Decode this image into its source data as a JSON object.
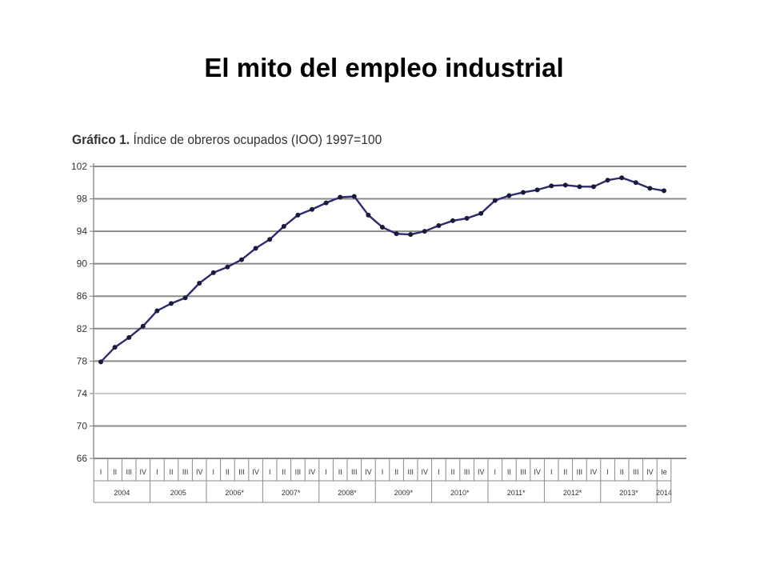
{
  "slide": {
    "title": "El mito del empleo industrial"
  },
  "chart_caption": {
    "label": "Gráfico 1.",
    "text": "Índice de obreros ocupados (IOO) 1997=100"
  },
  "chart_data": {
    "type": "line",
    "title": "Gráfico 1. Índice de obreros ocupados (IOO) 1997=100",
    "xlabel": "",
    "ylabel": "",
    "ylim": [
      66,
      102
    ],
    "yticks": [
      102,
      98,
      94,
      90,
      86,
      82,
      78,
      74,
      70,
      66
    ],
    "grid": true,
    "quarters": [
      "I",
      "II",
      "III",
      "IV",
      "I",
      "II",
      "III",
      "IV",
      "I",
      "II",
      "III",
      "IV",
      "I",
      "II",
      "III",
      "IV",
      "I",
      "II",
      "III",
      "IV",
      "I",
      "II",
      "III",
      "IV",
      "I",
      "II",
      "III",
      "IV",
      "I",
      "II",
      "III",
      "IV",
      "I",
      "II",
      "III",
      "IV",
      "I",
      "II",
      "III",
      "IV",
      "Ie"
    ],
    "years": [
      {
        "label": "2004",
        "quarters": 4
      },
      {
        "label": "2005",
        "quarters": 4
      },
      {
        "label": "2006*",
        "quarters": 4
      },
      {
        "label": "2007*",
        "quarters": 4
      },
      {
        "label": "2008*",
        "quarters": 4
      },
      {
        "label": "2009*",
        "quarters": 4
      },
      {
        "label": "2010*",
        "quarters": 4
      },
      {
        "label": "2011*",
        "quarters": 4
      },
      {
        "label": "2012*",
        "quarters": 4
      },
      {
        "label": "2013*",
        "quarters": 4
      },
      {
        "label": "2014",
        "quarters": 1
      }
    ],
    "series": [
      {
        "values": [
          77.9,
          79.7,
          80.9,
          82.3,
          84.2,
          85.1,
          85.8,
          87.6,
          88.9,
          89.6,
          90.5,
          91.9,
          93.0,
          94.6,
          96.0,
          96.7,
          97.5,
          98.2,
          98.3,
          96.0,
          94.5,
          93.7,
          93.6,
          94.0,
          94.7,
          95.3,
          95.6,
          96.2,
          97.8,
          98.4,
          98.8,
          99.1,
          99.6,
          99.7,
          99.5,
          99.5,
          100.3,
          100.6,
          100.0,
          99.3,
          99.0
        ],
        "color": "#2e2a6e"
      }
    ]
  }
}
